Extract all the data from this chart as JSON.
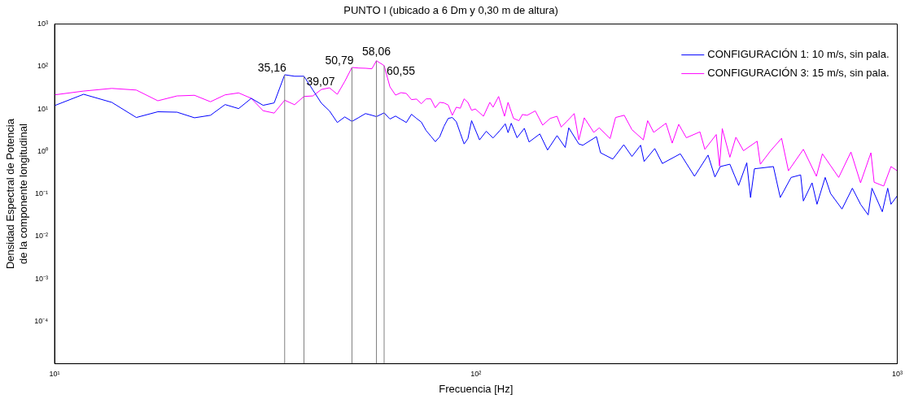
{
  "chart_data": {
    "type": "line",
    "title": "PUNTO I (ubicado a 6 Dm y 0,30 m de altura)",
    "xlabel": "Frecuencia [Hz]",
    "ylabel": "Densidad Espectral de Potencia\nde la componente longitudinal",
    "log": "xy",
    "grid": false,
    "legend": "top right",
    "marker": "none",
    "line_style": "solid",
    "xlim": [
      10,
      1000
    ],
    "xticks": [
      {
        "value": 10,
        "label": "10¹"
      },
      {
        "value": 100,
        "label": "10²"
      },
      {
        "value": 1000,
        "label": "10³"
      }
    ],
    "ylim": [
      1e-05,
      1000
    ],
    "yticks": [
      {
        "value": 1e-05,
        "label": null
      },
      {
        "value": 0.0001,
        "label": "10⁻⁴"
      },
      {
        "value": 0.001,
        "label": "10⁻³"
      },
      {
        "value": 0.01,
        "label": "10⁻²"
      },
      {
        "value": 0.1,
        "label": "10⁻¹"
      },
      {
        "value": 1,
        "label": "10⁰"
      },
      {
        "value": 10,
        "label": "10¹"
      },
      {
        "value": 100,
        "label": "10²"
      },
      {
        "value": 1000,
        "label": "10³"
      }
    ],
    "ref_lines": [
      {
        "axis": "x",
        "value": 35.16,
        "label": "35,16",
        "color": "#808080"
      },
      {
        "axis": "x",
        "value": 39.07,
        "label": "39,07",
        "color": "#808080"
      },
      {
        "axis": "x",
        "value": 50.79,
        "label": "50,79",
        "color": "#808080"
      },
      {
        "axis": "x",
        "value": 58.06,
        "label": "58,06",
        "color": "#808080"
      },
      {
        "axis": "x",
        "value": 60.55,
        "label": "60,55",
        "color": "#808080"
      }
    ],
    "series": [
      {
        "name": "CONFIGURACIÓN 1: 10 m/s, sin pala.",
        "color": "#0000ff",
        "x": [
          10,
          11.72,
          13.67,
          15.63,
          17.58,
          19.53,
          21.48,
          23.44,
          25.39,
          27.34,
          29.3,
          31.25,
          33.2,
          35.16,
          37.11,
          39.07,
          41.02,
          42.97,
          44.92,
          46.88,
          48.83,
          50.79,
          52.73,
          54.69,
          56.64,
          58.06,
          60.55,
          62.5,
          64.45,
          66.41,
          68.36,
          70.31,
          72.27,
          74.22,
          76.17,
          78.13,
          80.08,
          82.03,
          83.98,
          85.94,
          87.89,
          89.84,
          91.8,
          93.75,
          95.7,
          97.66,
          102,
          105.8,
          109.8,
          114,
          117.4,
          119.2,
          121.3,
          125.2,
          130.3,
          133.7,
          141.8,
          147.9,
          155.8,
          162.9,
          166.1,
          175.5,
          179.4,
          193.2,
          197.6,
          211.3,
          224.3,
          234.6,
          246,
          250.7,
          265.7,
          277,
          305.6,
          330.2,
          355.6,
          369.2,
          380.2,
          400.6,
          420.2,
          439.4,
          448.5,
          458.1,
          508.2,
          527.6,
          559.8,
          589.8,
          598.6,
          627.8,
          644.9,
          674.4,
          694.6,
          739.3,
          782.4,
          818.2,
          852.9,
          870.9,
          921.5,
          949.1,
          966.3,
          1000
        ],
        "values": [
          12,
          22.2,
          14.3,
          6.3,
          8.6,
          8.4,
          6.2,
          7.1,
          12.7,
          10.2,
          17.8,
          12.2,
          13.9,
          64,
          59,
          59,
          28,
          13.7,
          9,
          4.8,
          6.5,
          5.1,
          6.3,
          7.8,
          7.1,
          6.6,
          8.1,
          5.8,
          6.8,
          5.7,
          4.8,
          7.5,
          6,
          4.9,
          3.1,
          2.3,
          1.7,
          2.2,
          3.9,
          6,
          6.3,
          5,
          2.7,
          1.5,
          2,
          5.3,
          1.87,
          2.98,
          2.07,
          3.11,
          4.47,
          2.77,
          4.61,
          2.1,
          3.5,
          1.67,
          2.58,
          1.08,
          2.36,
          1.24,
          3.59,
          1.5,
          1.4,
          2.23,
          0.93,
          0.66,
          1.44,
          0.76,
          1.4,
          0.58,
          1.17,
          0.52,
          0.88,
          0.26,
          0.82,
          0.25,
          0.44,
          0.5,
          0.158,
          0.54,
          0.082,
          0.39,
          0.44,
          0.082,
          0.244,
          0.28,
          0.068,
          0.182,
          0.057,
          0.244,
          0.102,
          0.044,
          0.136,
          0.057,
          0.032,
          0.136,
          0.038,
          0.136,
          0.057,
          0.09
        ]
      },
      {
        "name": "CONFIGURACIÓN 3: 15 m/s, sin pala.",
        "color": "#ff00ff",
        "x": [
          10,
          11.72,
          13.67,
          15.63,
          17.58,
          19.53,
          21.48,
          23.44,
          25.39,
          27.34,
          29.3,
          31.25,
          33.2,
          35.16,
          37.11,
          39.07,
          41.02,
          42.97,
          44.92,
          46.88,
          48.83,
          50.79,
          52.73,
          54.69,
          56.64,
          58.06,
          60.55,
          62.5,
          64.45,
          66.41,
          68.36,
          70.31,
          72.27,
          74.22,
          76.17,
          78.13,
          80.08,
          82.03,
          83.98,
          85.94,
          87.89,
          89.84,
          91.8,
          93.75,
          95.7,
          97.66,
          99.7,
          104.2,
          107.9,
          109.8,
          113.2,
          116.9,
          119.2,
          122.8,
          126.5,
          128.9,
          132.3,
          138.3,
          144,
          150.1,
          155.8,
          159.3,
          164.6,
          171.1,
          175.5,
          180.8,
          190.4,
          196.2,
          208.2,
          214.5,
          224.9,
          234.6,
          249.6,
          255.6,
          264.2,
          282.5,
          292.3,
          302.9,
          315.8,
          340.2,
          349.4,
          371.9,
          378.6,
          384.3,
          400.6,
          414,
          431.5,
          464.9,
          473.2,
          500.6,
          531.4,
          551.7,
          598.6,
          642.8,
          664.2,
          726.1,
          776.3,
          818.2,
          865.9,
          881.3,
          928.5,
          966.3,
          1000
        ],
        "values": [
          21.5,
          26.4,
          30.5,
          27.9,
          15.6,
          20.3,
          21,
          14.8,
          21.5,
          23.9,
          17.8,
          9.1,
          8,
          16.1,
          12.6,
          19.7,
          20.3,
          28.8,
          31.5,
          22.2,
          44.6,
          95,
          92,
          91,
          88.5,
          137,
          105,
          33.3,
          21.2,
          24.2,
          23.2,
          16.6,
          17.1,
          13.3,
          17.3,
          17.3,
          10.7,
          14.3,
          13.9,
          12.4,
          7.1,
          11,
          10.4,
          17.3,
          14.3,
          9.3,
          10,
          6.74,
          14.3,
          11,
          19.7,
          6.74,
          14.3,
          6,
          5.3,
          7.4,
          7.1,
          9,
          4.17,
          6,
          6.74,
          3.76,
          5.18,
          7.8,
          1.87,
          6.2,
          2.81,
          3.59,
          2.01,
          6.3,
          7.1,
          3.25,
          1.87,
          5.3,
          2.81,
          4.61,
          1.57,
          4.35,
          2.1,
          2.89,
          1.12,
          2.5,
          0.45,
          3.44,
          0.73,
          2.16,
          1.04,
          1.74,
          0.5,
          1.04,
          2.04,
          0.35,
          1.12,
          0.26,
          0.88,
          0.244,
          0.97,
          0.182,
          0.93,
          0.188,
          0.153,
          0.44,
          0.35
        ]
      }
    ]
  }
}
